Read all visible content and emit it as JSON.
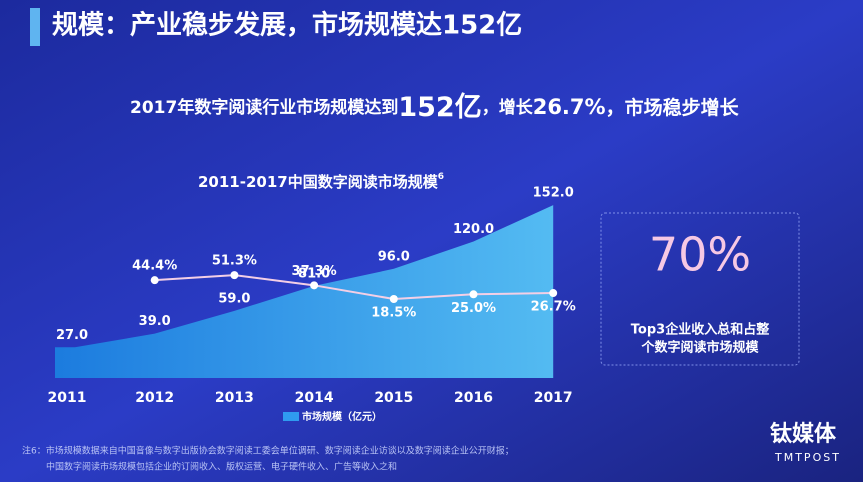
{
  "header": {
    "title": "规模：产业稳步发展，市场规模达152亿"
  },
  "subtitle": [
    "2017年数字阅读行业市场规模达到",
    "152亿",
    "，增长",
    "26.7%",
    "，市场稳步增长"
  ],
  "chart_data": {
    "type": "area",
    "title": "2011-2017中国数字阅读市场规模",
    "title_sup": "6",
    "categories": [
      "2011",
      "2012",
      "2013",
      "2014",
      "2015",
      "2016",
      "2017"
    ],
    "series": [
      {
        "name": "市场规模（亿元）",
        "type": "area",
        "color": "#2f9bf0",
        "values": [
          27,
          39,
          59,
          81,
          96,
          120,
          152
        ],
        "value_labels": [
          "27.0",
          "39.0",
          "59.0",
          "81.0",
          "96.0",
          "120.0",
          "152.0"
        ]
      },
      {
        "type": "line",
        "axis": "y2",
        "color": "#f3cfe6",
        "values": [
          null,
          44.4,
          51.3,
          37.3,
          18.5,
          25,
          26.7
        ],
        "value_labels": [
          null,
          "44.4%",
          "51.3%",
          "37.3%",
          "18.5%",
          "25.0%",
          "26.7%"
        ]
      }
    ],
    "ylim": [
      0,
      160
    ],
    "y2lim": [
      -90,
      160
    ]
  },
  "side_box": {
    "value": "70%",
    "lines": [
      "Top3企业收入总和占整",
      "个数字阅读市场规模"
    ]
  },
  "footnote": [
    "注6：市场规模数据来自中国音像与数字出版协会数字阅读工委会单位调研、数字阅读企业访谈以及数字阅读企业公开财报；",
    "中国数字阅读市场规模包括企业的订阅收入、版权运营、电子硬件收入、广告等收入之和"
  ],
  "watermark": {
    "name": "钛媒体",
    "brand": "TMTPOST"
  }
}
